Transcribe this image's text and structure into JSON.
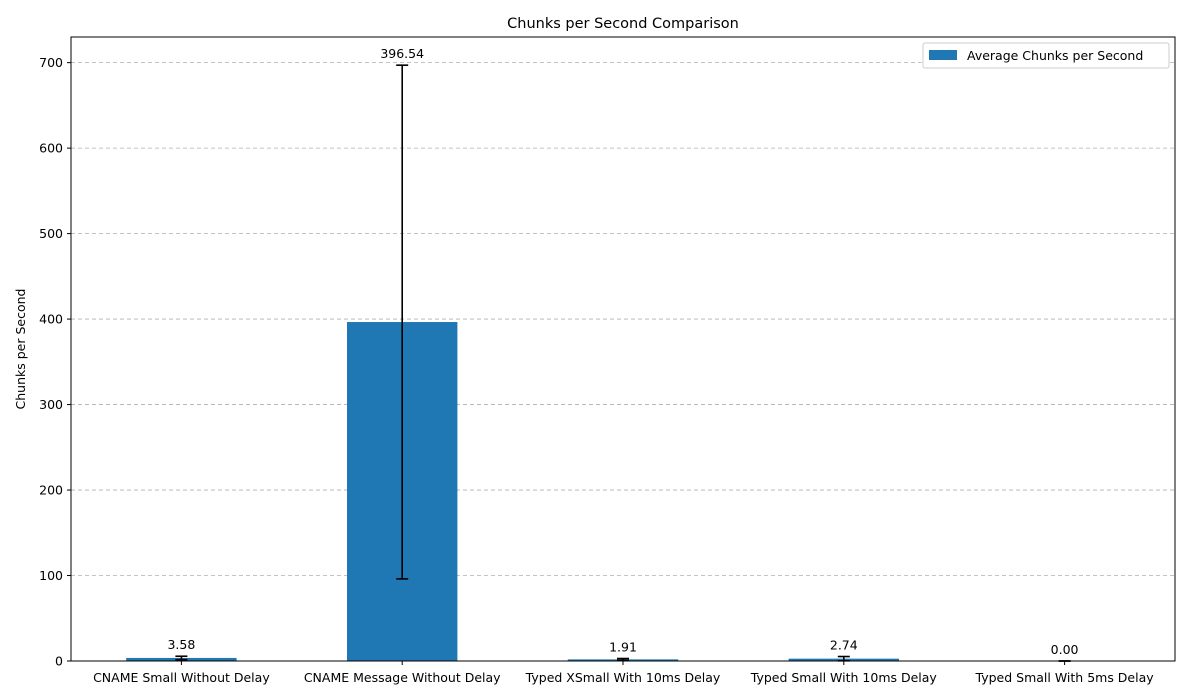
{
  "chart_data": {
    "type": "bar",
    "title": "Chunks per Second Comparison",
    "xlabel": "",
    "ylabel": "Chunks per Second",
    "ylim": [
      0,
      730
    ],
    "yticks": [
      0,
      100,
      200,
      300,
      400,
      500,
      600,
      700
    ],
    "grid": "y-dashed",
    "legend_placement": "top-right",
    "categories": [
      "CNAME Small Without Delay",
      "CNAME Message Without Delay",
      "Typed XSmall With 10ms Delay",
      "Typed Small With 10ms Delay",
      "Typed Small With 5ms Delay"
    ],
    "series": [
      {
        "name": "Average Chunks per Second",
        "color": "#1f77b4",
        "values": [
          3.58,
          396.54,
          1.91,
          2.74,
          0.0
        ],
        "value_labels": [
          "3.58",
          "396.54",
          "1.91",
          "2.74",
          "0.00"
        ],
        "error": [
          2.0,
          300.5,
          1.0,
          2.5,
          0.0
        ]
      }
    ]
  }
}
